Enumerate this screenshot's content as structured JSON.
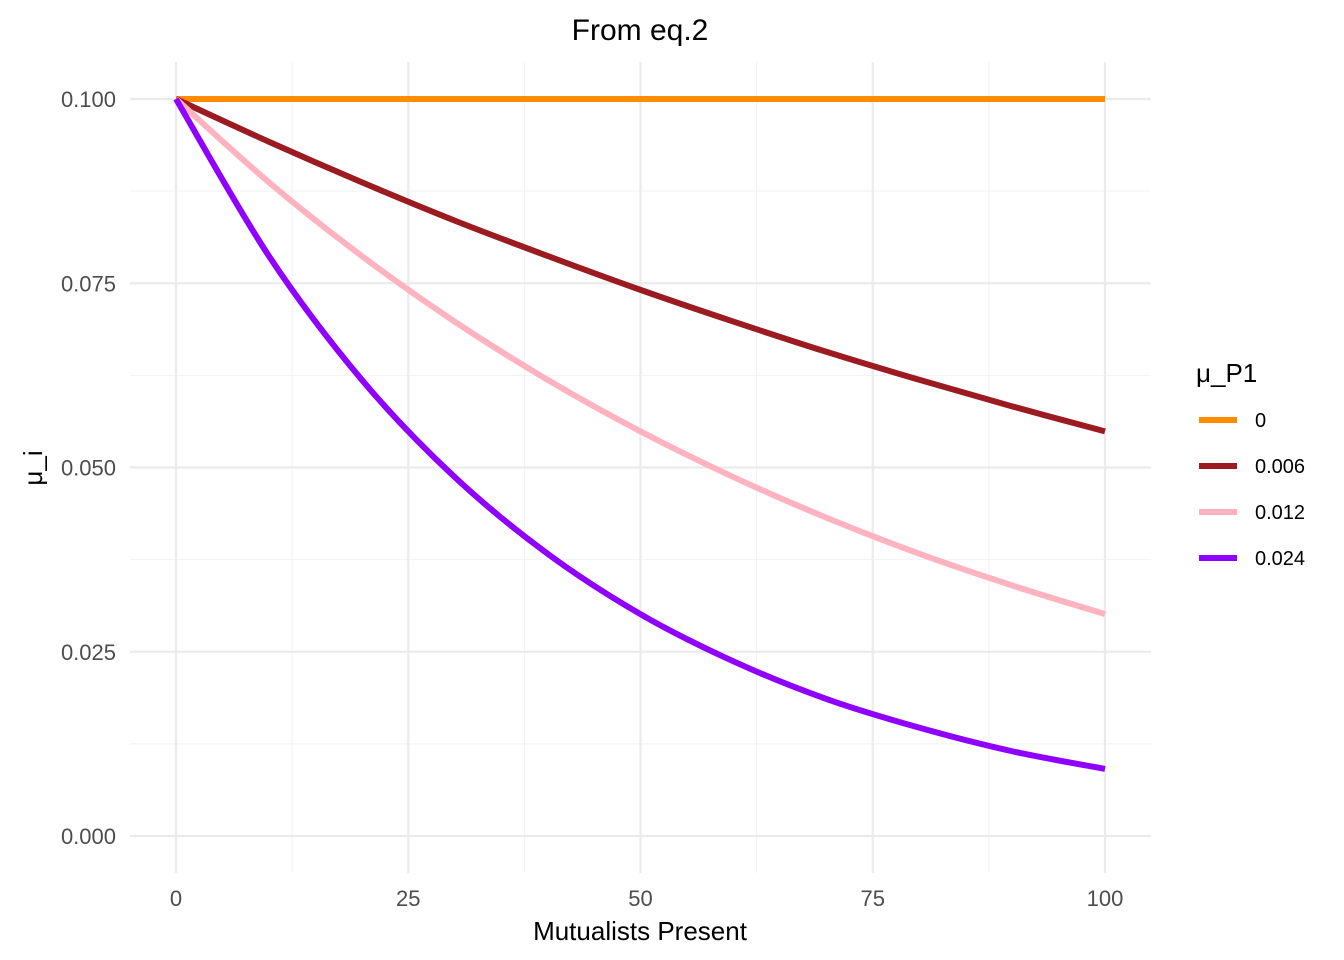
{
  "chart_data": {
    "type": "line",
    "title": "From eq.2",
    "xlabel": "Mutualists Present",
    "ylabel": "μ_i",
    "xlim": [
      0,
      100
    ],
    "ylim": [
      0,
      0.1
    ],
    "x_ticks": [
      0,
      25,
      50,
      75,
      100
    ],
    "x_tick_labels": [
      "0",
      "25",
      "50",
      "75",
      "100"
    ],
    "y_ticks": [
      0,
      0.025,
      0.05,
      0.075,
      0.1
    ],
    "y_tick_labels": [
      "0.000",
      "0.025",
      "0.050",
      "0.075",
      "0.100"
    ],
    "grid": true,
    "legend": {
      "title": "μ_P1",
      "position": "right"
    },
    "series": [
      {
        "name": "0",
        "color": "#ff8c00",
        "x": [
          0,
          10,
          20,
          30,
          40,
          50,
          60,
          70,
          80,
          90,
          100
        ],
        "y": [
          0.1,
          0.1,
          0.1,
          0.1,
          0.1,
          0.1,
          0.1,
          0.1,
          0.1,
          0.1,
          0.1
        ]
      },
      {
        "name": "0.006",
        "color": "#9b1b20",
        "x": [
          0,
          10,
          20,
          30,
          40,
          50,
          60,
          70,
          80,
          90,
          100
        ],
        "y": [
          0.1,
          0.0942,
          0.0887,
          0.0835,
          0.0787,
          0.0741,
          0.0698,
          0.0657,
          0.0619,
          0.0583,
          0.0549
        ]
      },
      {
        "name": "0.012",
        "color": "#ffb3c1",
        "x": [
          0,
          10,
          20,
          30,
          40,
          50,
          60,
          70,
          80,
          90,
          100
        ],
        "y": [
          0.1,
          0.0887,
          0.0787,
          0.0698,
          0.0619,
          0.0549,
          0.0487,
          0.0432,
          0.0383,
          0.034,
          0.0301
        ]
      },
      {
        "name": "0.024",
        "color": "#8f00ff",
        "x": [
          0,
          10,
          20,
          30,
          40,
          50,
          60,
          70,
          80,
          90,
          100
        ],
        "y": [
          0.1,
          0.0787,
          0.0619,
          0.0487,
          0.0383,
          0.0301,
          0.0237,
          0.0186,
          0.0147,
          0.0115,
          0.0091
        ]
      }
    ]
  }
}
